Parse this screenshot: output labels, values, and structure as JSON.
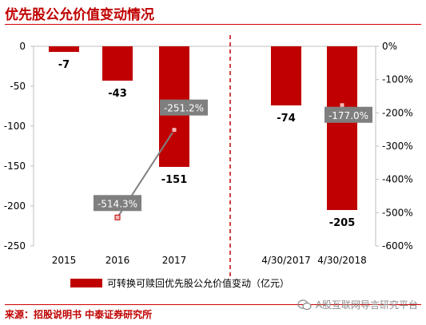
{
  "title": "优先股公允价值变动情况",
  "source": "来源：招股说明书 中泰证券研究所",
  "watermark": "A股互联网导言研究平台",
  "colors": {
    "bar": "#c00000",
    "line": "#808080",
    "label_box": "#7f7f7f",
    "divider": "#c00000"
  },
  "chart_data": {
    "type": "bar",
    "categories": [
      "2015",
      "2016",
      "2017",
      "4/30/2017",
      "4/30/2018"
    ],
    "series": [
      {
        "name": "可转换可赎回优先股公允价值变动（亿元）",
        "type": "bar",
        "axis": "left",
        "values": [
          -7,
          -43,
          -151,
          -74,
          -205
        ]
      }
    ],
    "bar_labels": [
      "-7",
      "-43",
      "-151",
      "-74",
      "-205"
    ],
    "percent_points": [
      {
        "category": "2016",
        "value": -514.3,
        "label": "-514.3%"
      },
      {
        "category": "2017",
        "value": -251.2,
        "label": "-251.2%"
      },
      {
        "category": "4/30/2018",
        "value": -177.0,
        "label": "-177.0%"
      }
    ],
    "left_axis": {
      "ylim": [
        -250,
        0
      ],
      "ticks": [
        0,
        -50,
        -100,
        -150,
        -200,
        -250
      ],
      "tick_labels": [
        "0",
        "-50",
        "-100",
        "-150",
        "-200",
        "-250"
      ]
    },
    "right_axis": {
      "ylim": [
        -600,
        0
      ],
      "ticks": [
        0,
        -100,
        -200,
        -300,
        -400,
        -500,
        -600
      ],
      "tick_labels": [
        "0%",
        "-100%",
        "-200%",
        "-300%",
        "-400%",
        "-500%",
        "-600%"
      ]
    },
    "divider_after": "2017",
    "legend": {
      "position": "bottom",
      "label": "可转换可赎回优先股公允价值变动（亿元）"
    }
  }
}
